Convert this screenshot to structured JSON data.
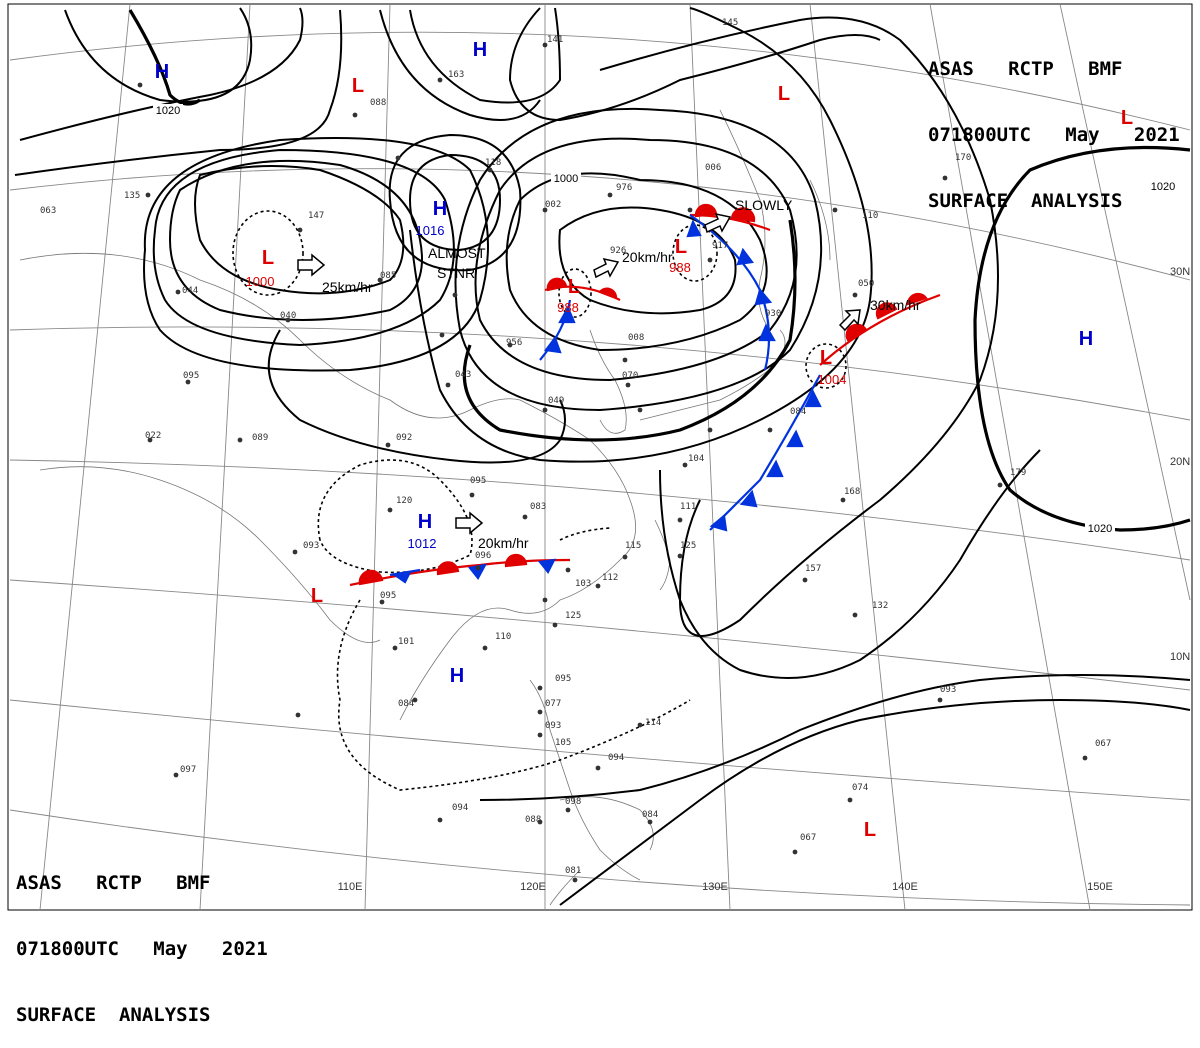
{
  "header_top": {
    "line1": "ASAS   RCTP   BMF",
    "line2": "071800UTC   May   2021",
    "line3": "SURFACE  ANALYSIS"
  },
  "header_bottom": {
    "line1": "ASAS   RCTP   BMF",
    "line2": "071800UTC   May   2021",
    "line3": "SURFACE  ANALYSIS"
  },
  "colors": {
    "high": "#0000cc",
    "low": "#dd0000",
    "warm_front": "#e00000",
    "cold_front": "#0033dd",
    "isobar": "#000000",
    "grid": "#888888"
  },
  "longitude_labels": [
    "110E",
    "120E",
    "130E",
    "140E",
    "150E"
  ],
  "latitude_labels": [
    "30N",
    "20N",
    "10N"
  ],
  "pressure_systems": [
    {
      "type": "H",
      "symbol": "H",
      "value": ""
    },
    {
      "type": "H",
      "symbol": "H",
      "value": ""
    },
    {
      "type": "H",
      "symbol": "H",
      "value": "1016"
    },
    {
      "type": "H",
      "symbol": "H",
      "value": "1012"
    },
    {
      "type": "H",
      "symbol": "H",
      "value": ""
    },
    {
      "type": "H",
      "symbol": "H",
      "value": ""
    },
    {
      "type": "L",
      "symbol": "L",
      "value": ""
    },
    {
      "type": "L",
      "symbol": "L",
      "value": "1000"
    },
    {
      "type": "L",
      "symbol": "L",
      "value": "988"
    },
    {
      "type": "L",
      "symbol": "L",
      "value": "988"
    },
    {
      "type": "L",
      "symbol": "L",
      "value": ""
    },
    {
      "type": "L",
      "symbol": "L",
      "value": ""
    },
    {
      "type": "L",
      "symbol": "L",
      "value": "1004"
    },
    {
      "type": "L",
      "symbol": "L",
      "value": ""
    },
    {
      "type": "L",
      "symbol": "L",
      "value": ""
    }
  ],
  "isobar_labels": [
    "1020",
    "1000",
    "1020",
    "1020"
  ],
  "motion_labels": [
    "25km/hr",
    "ALMOST",
    "STNR",
    "20km/hr",
    "SLOWLY",
    "30km/hr",
    "20km/hr"
  ],
  "stations": [
    "141",
    "163",
    "088",
    "118",
    "976",
    "002",
    "926",
    "006",
    "917",
    "930",
    "110",
    "050",
    "135",
    "063",
    "147",
    "085",
    "044",
    "040",
    "095",
    "022",
    "089",
    "092",
    "956",
    "043",
    "049",
    "008",
    "070",
    "120",
    "095",
    "083",
    "096",
    "103",
    "112",
    "111",
    "115",
    "125",
    "093",
    "095",
    "101",
    "110",
    "125",
    "104",
    "084",
    "168",
    "179",
    "157",
    "132",
    "095",
    "077",
    "093",
    "114",
    "094",
    "098",
    "084",
    "093",
    "067",
    "074",
    "067",
    "081",
    "088",
    "094",
    "084",
    "097",
    "105",
    "145",
    "170"
  ]
}
